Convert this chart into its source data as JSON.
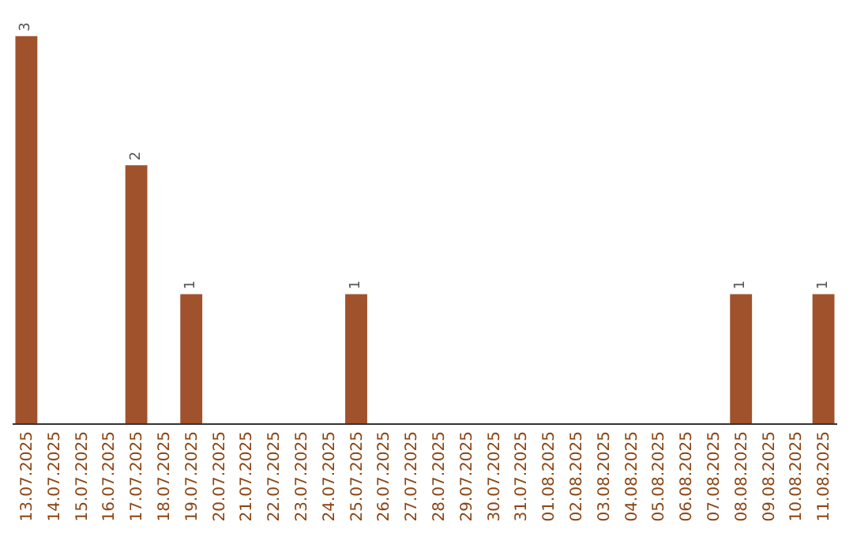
{
  "chart_data": {
    "type": "bar",
    "categories": [
      "13.07.2025",
      "14.07.2025",
      "15.07.2025",
      "16.07.2025",
      "17.07.2025",
      "18.07.2025",
      "19.07.2025",
      "20.07.2025",
      "21.07.2025",
      "22.07.2025",
      "23.07.2025",
      "24.07.2025",
      "25.07.2025",
      "26.07.2025",
      "27.07.2025",
      "28.07.2025",
      "29.07.2025",
      "30.07.2025",
      "31.07.2025",
      "01.08.2025",
      "02.08.2025",
      "03.08.2025",
      "04.08.2025",
      "05.08.2025",
      "06.08.2025",
      "07.08.2025",
      "08.08.2025",
      "09.08.2025",
      "10.08.2025",
      "11.08.2025"
    ],
    "values": [
      3,
      0,
      0,
      0,
      2,
      0,
      1,
      0,
      0,
      0,
      0,
      0,
      1,
      0,
      0,
      0,
      0,
      0,
      0,
      0,
      0,
      0,
      0,
      0,
      0,
      0,
      1,
      0,
      0,
      1
    ],
    "value_labels": [
      "3",
      null,
      null,
      null,
      "2",
      null,
      "1",
      null,
      null,
      null,
      null,
      null,
      "1",
      null,
      null,
      null,
      null,
      null,
      null,
      null,
      null,
      null,
      null,
      null,
      null,
      null,
      "1",
      null,
      null,
      "1"
    ],
    "color": "#a0522d"
  }
}
